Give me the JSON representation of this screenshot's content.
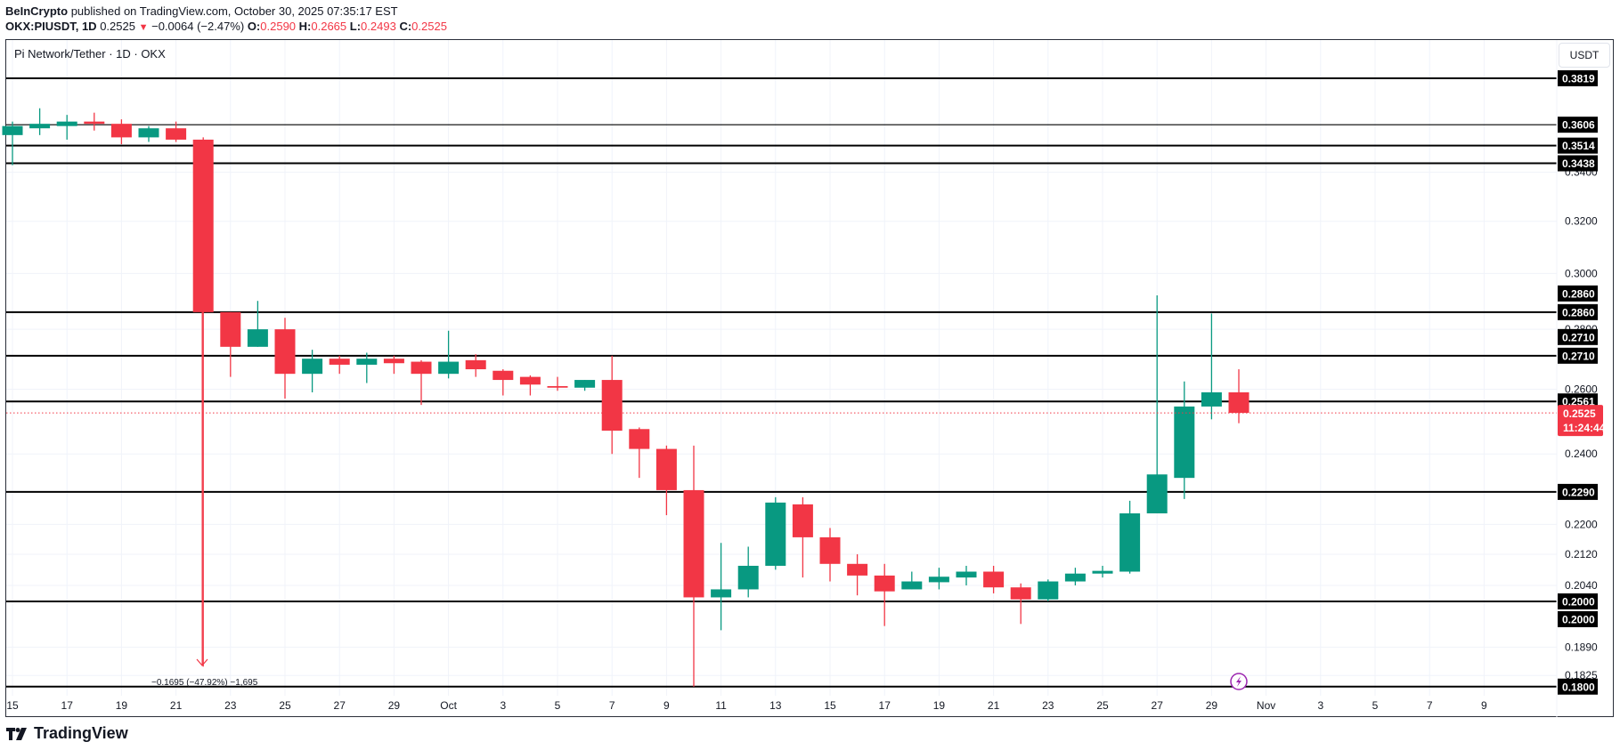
{
  "header": {
    "publisher": "BeInCrypto",
    "published_text": "published on TradingView.com, October 30, 2025 07:35:17 EST",
    "symbol": "OKX:PIUSDT, 1D",
    "last": "0.2525",
    "change": "−0.0064 (−2.47%)",
    "change_direction": "down",
    "open_label": "O:",
    "open": "0.2590",
    "high_label": "H:",
    "high": "0.2665",
    "low_label": "L:",
    "low": "0.2493",
    "close_label": "C:",
    "close": "0.2525"
  },
  "chart": {
    "title": "Pi Network/Tether · 1D · OKX",
    "currency_button": "USDT",
    "countdown": "11:24:44",
    "measure_text": "−0.1695 (−47.92%) −1,695",
    "colors": {
      "up": "#089981",
      "down": "#F23645",
      "level_line": "#000000",
      "grid": "#f0f3fa"
    }
  },
  "footer": {
    "brand": "TradingView"
  },
  "chart_data": {
    "type": "candlestick",
    "title": "Pi Network/Tether · 1D · OKX",
    "xlabel": "",
    "ylabel": "USDT",
    "y_scale": "log",
    "ylim": [
      0.178,
      0.392
    ],
    "grid": true,
    "x_tick_labels": [
      "15",
      "17",
      "19",
      "21",
      "23",
      "25",
      "27",
      "29",
      "Oct",
      "3",
      "5",
      "7",
      "9",
      "11",
      "13",
      "15",
      "17",
      "19",
      "21",
      "23",
      "25",
      "27",
      "29",
      "Nov",
      "3",
      "5",
      "7",
      "9"
    ],
    "y_tick_labels": [
      "0.3400",
      "0.3200",
      "0.3000",
      "0.2800",
      "0.2600",
      "0.2400",
      "0.2200",
      "0.2120",
      "0.2040",
      "0.1890",
      "0.1825"
    ],
    "horizontal_levels": [
      0.3819,
      0.3606,
      0.3514,
      0.3438,
      0.286,
      0.271,
      0.2561,
      0.229,
      0.2,
      0.18
    ],
    "level_tags": [
      "0.3819",
      "0.3606",
      "0.3514",
      "0.3438",
      "0.2860",
      "0.2860",
      "0.2710",
      "0.2710",
      "0.2561",
      "0.2290",
      "0.2000",
      "0.2000",
      "0.1800"
    ],
    "current_price": 0.2525,
    "current_price_label": "0.2525",
    "candles": [
      {
        "date": "Sep 15",
        "o": 0.356,
        "h": 0.362,
        "l": 0.343,
        "c": 0.36
      },
      {
        "date": "Sep 16",
        "o": 0.359,
        "h": 0.368,
        "l": 0.356,
        "c": 0.361
      },
      {
        "date": "Sep 17",
        "o": 0.36,
        "h": 0.365,
        "l": 0.354,
        "c": 0.362
      },
      {
        "date": "Sep 18",
        "o": 0.362,
        "h": 0.366,
        "l": 0.358,
        "c": 0.361
      },
      {
        "date": "Sep 19",
        "o": 0.361,
        "h": 0.363,
        "l": 0.352,
        "c": 0.355
      },
      {
        "date": "Sep 20",
        "o": 0.355,
        "h": 0.36,
        "l": 0.353,
        "c": 0.359
      },
      {
        "date": "Sep 21",
        "o": 0.359,
        "h": 0.362,
        "l": 0.353,
        "c": 0.354
      },
      {
        "date": "Sep 22",
        "o": 0.354,
        "h": 0.355,
        "l": 0.1845,
        "c": 0.286
      },
      {
        "date": "Sep 23",
        "o": 0.286,
        "h": 0.286,
        "l": 0.264,
        "c": 0.274
      },
      {
        "date": "Sep 24",
        "o": 0.274,
        "h": 0.29,
        "l": 0.274,
        "c": 0.28
      },
      {
        "date": "Sep 25",
        "o": 0.28,
        "h": 0.284,
        "l": 0.257,
        "c": 0.265
      },
      {
        "date": "Sep 26",
        "o": 0.265,
        "h": 0.273,
        "l": 0.259,
        "c": 0.27
      },
      {
        "date": "Sep 27",
        "o": 0.27,
        "h": 0.271,
        "l": 0.265,
        "c": 0.268
      },
      {
        "date": "Sep 28",
        "o": 0.268,
        "h": 0.272,
        "l": 0.262,
        "c": 0.27
      },
      {
        "date": "Sep 29",
        "o": 0.27,
        "h": 0.271,
        "l": 0.265,
        "c": 0.2685
      },
      {
        "date": "Sep 30",
        "o": 0.269,
        "h": 0.2695,
        "l": 0.255,
        "c": 0.265
      },
      {
        "date": "Oct 1",
        "o": 0.265,
        "h": 0.2795,
        "l": 0.2635,
        "c": 0.269
      },
      {
        "date": "Oct 2",
        "o": 0.2695,
        "h": 0.2715,
        "l": 0.264,
        "c": 0.2665
      },
      {
        "date": "Oct 3",
        "o": 0.266,
        "h": 0.2665,
        "l": 0.258,
        "c": 0.263
      },
      {
        "date": "Oct 4",
        "o": 0.264,
        "h": 0.2645,
        "l": 0.258,
        "c": 0.2615
      },
      {
        "date": "Oct 5",
        "o": 0.261,
        "h": 0.264,
        "l": 0.2595,
        "c": 0.2605
      },
      {
        "date": "Oct 6",
        "o": 0.2605,
        "h": 0.263,
        "l": 0.2595,
        "c": 0.263
      },
      {
        "date": "Oct 7",
        "o": 0.263,
        "h": 0.271,
        "l": 0.24,
        "c": 0.247
      },
      {
        "date": "Oct 8",
        "o": 0.2475,
        "h": 0.248,
        "l": 0.233,
        "c": 0.2415
      },
      {
        "date": "Oct 9",
        "o": 0.2415,
        "h": 0.2425,
        "l": 0.2225,
        "c": 0.2295
      },
      {
        "date": "Oct 10",
        "o": 0.2295,
        "h": 0.2425,
        "l": 0.18,
        "c": 0.201
      },
      {
        "date": "Oct 11",
        "o": 0.201,
        "h": 0.215,
        "l": 0.193,
        "c": 0.203
      },
      {
        "date": "Oct 12",
        "o": 0.203,
        "h": 0.214,
        "l": 0.201,
        "c": 0.209
      },
      {
        "date": "Oct 13",
        "o": 0.209,
        "h": 0.2275,
        "l": 0.208,
        "c": 0.226
      },
      {
        "date": "Oct 14",
        "o": 0.2255,
        "h": 0.2275,
        "l": 0.206,
        "c": 0.2165
      },
      {
        "date": "Oct 15",
        "o": 0.2165,
        "h": 0.219,
        "l": 0.205,
        "c": 0.2095
      },
      {
        "date": "Oct 16",
        "o": 0.2095,
        "h": 0.212,
        "l": 0.2015,
        "c": 0.2065
      },
      {
        "date": "Oct 17",
        "o": 0.2065,
        "h": 0.2095,
        "l": 0.194,
        "c": 0.2025
      },
      {
        "date": "Oct 18",
        "o": 0.203,
        "h": 0.2075,
        "l": 0.203,
        "c": 0.205
      },
      {
        "date": "Oct 19",
        "o": 0.2048,
        "h": 0.2085,
        "l": 0.203,
        "c": 0.2062
      },
      {
        "date": "Oct 20",
        "o": 0.206,
        "h": 0.209,
        "l": 0.204,
        "c": 0.2075
      },
      {
        "date": "Oct 21",
        "o": 0.2075,
        "h": 0.209,
        "l": 0.202,
        "c": 0.2035
      },
      {
        "date": "Oct 22",
        "o": 0.2035,
        "h": 0.2045,
        "l": 0.1945,
        "c": 0.2005
      },
      {
        "date": "Oct 23",
        "o": 0.2005,
        "h": 0.2055,
        "l": 0.2,
        "c": 0.205
      },
      {
        "date": "Oct 24",
        "o": 0.205,
        "h": 0.2085,
        "l": 0.204,
        "c": 0.207
      },
      {
        "date": "Oct 25",
        "o": 0.207,
        "h": 0.209,
        "l": 0.206,
        "c": 0.2077
      },
      {
        "date": "Oct 26",
        "o": 0.2075,
        "h": 0.2265,
        "l": 0.207,
        "c": 0.223
      },
      {
        "date": "Oct 27",
        "o": 0.223,
        "h": 0.292,
        "l": 0.223,
        "c": 0.234
      },
      {
        "date": "Oct 28",
        "o": 0.233,
        "h": 0.2625,
        "l": 0.227,
        "c": 0.2545
      },
      {
        "date": "Oct 29",
        "o": 0.2545,
        "h": 0.2855,
        "l": 0.2505,
        "c": 0.259
      },
      {
        "date": "Oct 30",
        "o": 0.259,
        "h": 0.2665,
        "l": 0.2493,
        "c": 0.2525
      }
    ],
    "annotations": [
      {
        "type": "price_range_measure",
        "text": "−0.1695 (−47.92%) −1,695",
        "from": 0.354,
        "to": 0.1845
      },
      {
        "type": "event_marker",
        "icon": "lightning",
        "date": "Oct 30"
      }
    ]
  }
}
